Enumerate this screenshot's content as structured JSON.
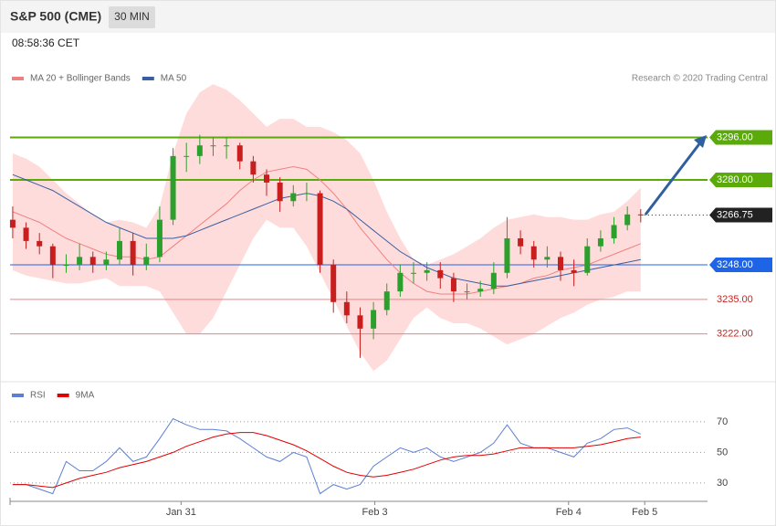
{
  "chart_data": [
    {
      "type": "candlestick",
      "title": "S&P 500 (CME)",
      "interval": "30 MIN",
      "timestamp": "08:58:36 CET",
      "credit": "Research © 2020 Trading Central",
      "open": [
        3265,
        3262,
        3257,
        3255,
        3248,
        3248,
        3251,
        3248,
        3250,
        3257,
        3248,
        3251,
        3265,
        3289,
        3289,
        3293,
        3293,
        3293,
        3287,
        3282,
        3279,
        3272,
        3275,
        3275,
        3248,
        3234,
        3229,
        3224,
        3231,
        3238,
        3245,
        3245,
        3246,
        3243,
        3238,
        3238,
        3239,
        3245,
        3258,
        3255,
        3250,
        3251,
        3246,
        3245,
        3255,
        3258,
        3263,
        3267
      ],
      "high": [
        3270,
        3264,
        3260,
        3256,
        3252,
        3256,
        3253,
        3253,
        3262,
        3260,
        3256,
        3270,
        3292,
        3294,
        3297,
        3296,
        3296,
        3294,
        3289,
        3284,
        3281,
        3278,
        3279,
        3276,
        3250,
        3238,
        3232,
        3234,
        3241,
        3248,
        3249,
        3249,
        3249,
        3245,
        3241,
        3242,
        3249,
        3266,
        3261,
        3257,
        3255,
        3253,
        3250,
        3258,
        3261,
        3266,
        3270,
        3269
      ],
      "low": [
        3258,
        3254,
        3252,
        3243,
        3245,
        3246,
        3245,
        3246,
        3248,
        3244,
        3246,
        3249,
        3263,
        3283,
        3286,
        3289,
        3288,
        3284,
        3279,
        3274,
        3268,
        3270,
        3272,
        3245,
        3230,
        3226,
        3213,
        3220,
        3229,
        3236,
        3241,
        3242,
        3239,
        3234,
        3235,
        3236,
        3237,
        3243,
        3252,
        3247,
        3247,
        3242,
        3240,
        3244,
        3253,
        3256,
        3261,
        3264
      ],
      "close": [
        3262,
        3257,
        3255,
        3248,
        3248,
        3251,
        3248,
        3250,
        3257,
        3248,
        3251,
        3265,
        3289,
        3289,
        3293,
        3293,
        3293,
        3287,
        3282,
        3279,
        3272,
        3275,
        3275,
        3248,
        3234,
        3229,
        3224,
        3231,
        3238,
        3245,
        3245,
        3246,
        3243,
        3238,
        3238,
        3239,
        3245,
        3258,
        3255,
        3250,
        3251,
        3246,
        3245,
        3255,
        3258,
        3263,
        3267,
        3266.75
      ],
      "up_color": "#2ca02c",
      "down_color": "#c81e1e",
      "band_color": "#ffdcdc",
      "series": [
        {
          "name": "MA 20 + Bollinger Bands",
          "color": "#f08080",
          "values": [
            3268,
            3266,
            3264,
            3261,
            3258,
            3256,
            3254,
            3252,
            3251,
            3251,
            3250,
            3251,
            3255,
            3259,
            3263,
            3267,
            3271,
            3276,
            3280,
            3283,
            3284,
            3285,
            3284,
            3280,
            3275,
            3269,
            3262,
            3256,
            3250,
            3245,
            3241,
            3238,
            3237,
            3237,
            3237,
            3238,
            3239,
            3240,
            3241,
            3243,
            3244,
            3246,
            3247,
            3248,
            3250,
            3252,
            3254,
            3256
          ],
          "upper": [
            3290,
            3288,
            3285,
            3280,
            3275,
            3271,
            3267,
            3264,
            3265,
            3264,
            3262,
            3270,
            3290,
            3305,
            3313,
            3316,
            3314,
            3310,
            3305,
            3300,
            3303,
            3303,
            3300,
            3300,
            3298,
            3295,
            3290,
            3280,
            3268,
            3258,
            3250,
            3248,
            3250,
            3252,
            3255,
            3258,
            3262,
            3265,
            3266,
            3267,
            3266,
            3266,
            3265,
            3265,
            3267,
            3268,
            3272,
            3277
          ],
          "lower": [
            3246,
            3244,
            3243,
            3242,
            3241,
            3241,
            3242,
            3243,
            3240,
            3240,
            3240,
            3238,
            3230,
            3222,
            3222,
            3228,
            3238,
            3248,
            3258,
            3265,
            3262,
            3262,
            3255,
            3245,
            3235,
            3225,
            3215,
            3208,
            3212,
            3220,
            3228,
            3232,
            3228,
            3226,
            3226,
            3224,
            3221,
            3218,
            3220,
            3222,
            3225,
            3228,
            3230,
            3233,
            3235,
            3236,
            3238,
            3238
          ]
        },
        {
          "name": "MA 50",
          "color": "#3a5fa0",
          "values": [
            3282,
            3280,
            3278,
            3276,
            3273,
            3270,
            3267,
            3264,
            3262,
            3260,
            3258,
            3258,
            3258,
            3259,
            3261,
            3263,
            3265,
            3267,
            3269,
            3271,
            3273,
            3274,
            3275,
            3274,
            3272,
            3269,
            3265,
            3261,
            3257,
            3253,
            3250,
            3247,
            3245,
            3243,
            3242,
            3241,
            3240,
            3240,
            3241,
            3242,
            3243,
            3244,
            3245,
            3246,
            3247,
            3248,
            3249,
            3250
          ]
        }
      ],
      "levels": [
        {
          "value": 3296,
          "label": "3296.00",
          "color": "#5aaa0a",
          "style": "box"
        },
        {
          "value": 3280,
          "label": "3280.00",
          "color": "#5aaa0a",
          "style": "box"
        },
        {
          "value": 3266.75,
          "label": "3266.75",
          "color": "#222222",
          "style": "current"
        },
        {
          "value": 3248,
          "label": "3248.00",
          "color": "#1e64e6",
          "style": "box"
        },
        {
          "value": 3235,
          "label": "3235.00",
          "color": "#f08080",
          "style": "text"
        },
        {
          "value": 3222,
          "label": "3222.00",
          "color": "#f08080",
          "style": "text"
        }
      ],
      "xlim": [
        -0.2,
        52
      ],
      "ylim": [
        3204,
        3334
      ]
    },
    {
      "type": "line",
      "series": [
        {
          "name": "RSI",
          "color": "#5b7fd6",
          "values": [
            29,
            29,
            26,
            23,
            44,
            38,
            38,
            44,
            53,
            44,
            47,
            59,
            72,
            68,
            65,
            65,
            64,
            59,
            53,
            47,
            44,
            50,
            47,
            23,
            29,
            26,
            29,
            41,
            47,
            53,
            50,
            53,
            47,
            44,
            47,
            50,
            56,
            68,
            56,
            53,
            53,
            50,
            47,
            56,
            59,
            65,
            66,
            62
          ]
        },
        {
          "name": "9MA",
          "color": "#e00000",
          "values": [
            29,
            29,
            28,
            27,
            30,
            33,
            35,
            37,
            40,
            42,
            44,
            47,
            50,
            54,
            57,
            60,
            62,
            63,
            63,
            61,
            58,
            55,
            51,
            46,
            41,
            37,
            35,
            34,
            35,
            37,
            39,
            42,
            45,
            47,
            48,
            48,
            49,
            51,
            53,
            53,
            53,
            53,
            53,
            54,
            55,
            57,
            59,
            60
          ]
        }
      ],
      "xlim": [
        -0.2,
        52
      ],
      "xticks": [
        {
          "value": 12.6,
          "label": "Jan 31"
        },
        {
          "value": 27.1,
          "label": "Feb 3"
        },
        {
          "value": 41.6,
          "label": "Feb 4"
        },
        {
          "value": 47.3,
          "label": "Feb 5"
        }
      ],
      "ylim": [
        18,
        95
      ],
      "yticks": [
        30,
        50,
        70
      ]
    }
  ]
}
